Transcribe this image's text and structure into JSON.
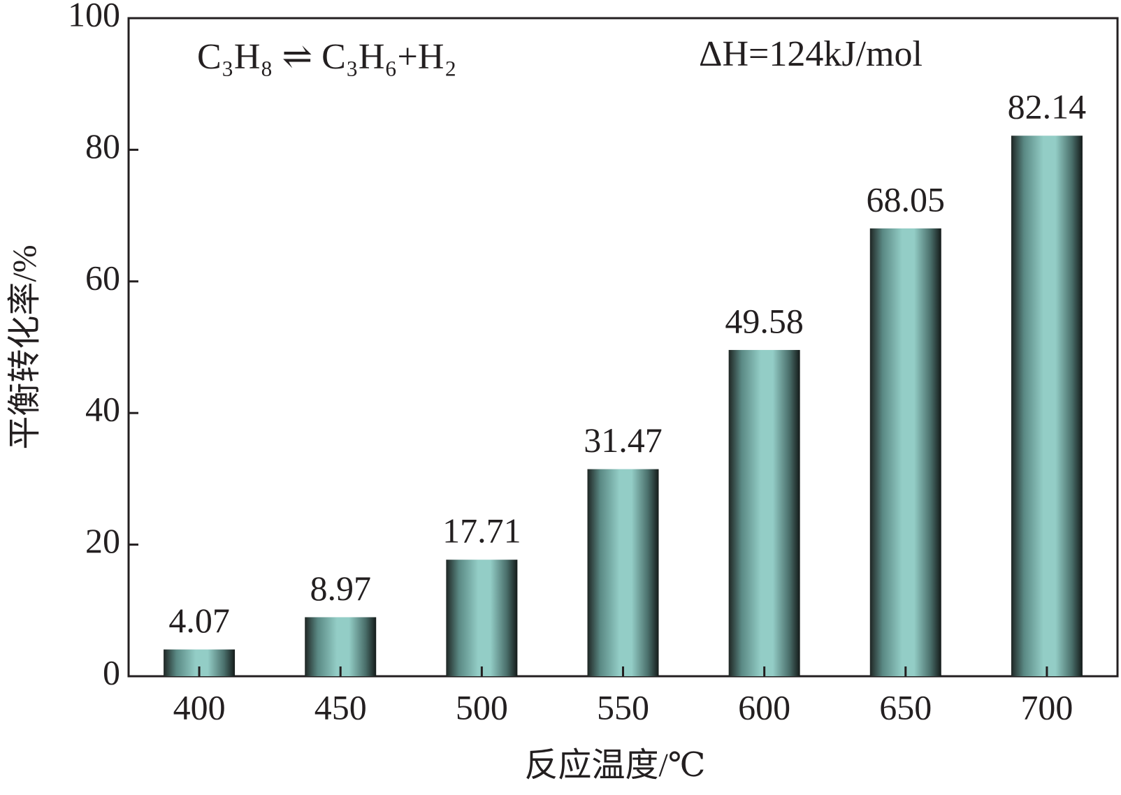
{
  "chart_data": {
    "type": "bar",
    "annotations": [
      "C₃H₈ ⇌ C₃H₆+H₂",
      "ΔH=124kJ/mol"
    ],
    "xlabel": "反应温度/℃",
    "ylabel": "平衡转化率/%",
    "categories": [
      "400",
      "450",
      "500",
      "550",
      "600",
      "650",
      "700"
    ],
    "values": [
      4.07,
      8.97,
      17.71,
      31.47,
      49.58,
      68.05,
      82.14
    ],
    "color": "#93cdc6",
    "ylim": [
      0,
      100
    ],
    "yticks": [
      0,
      20,
      40,
      60,
      80,
      100
    ],
    "grid": false
  }
}
